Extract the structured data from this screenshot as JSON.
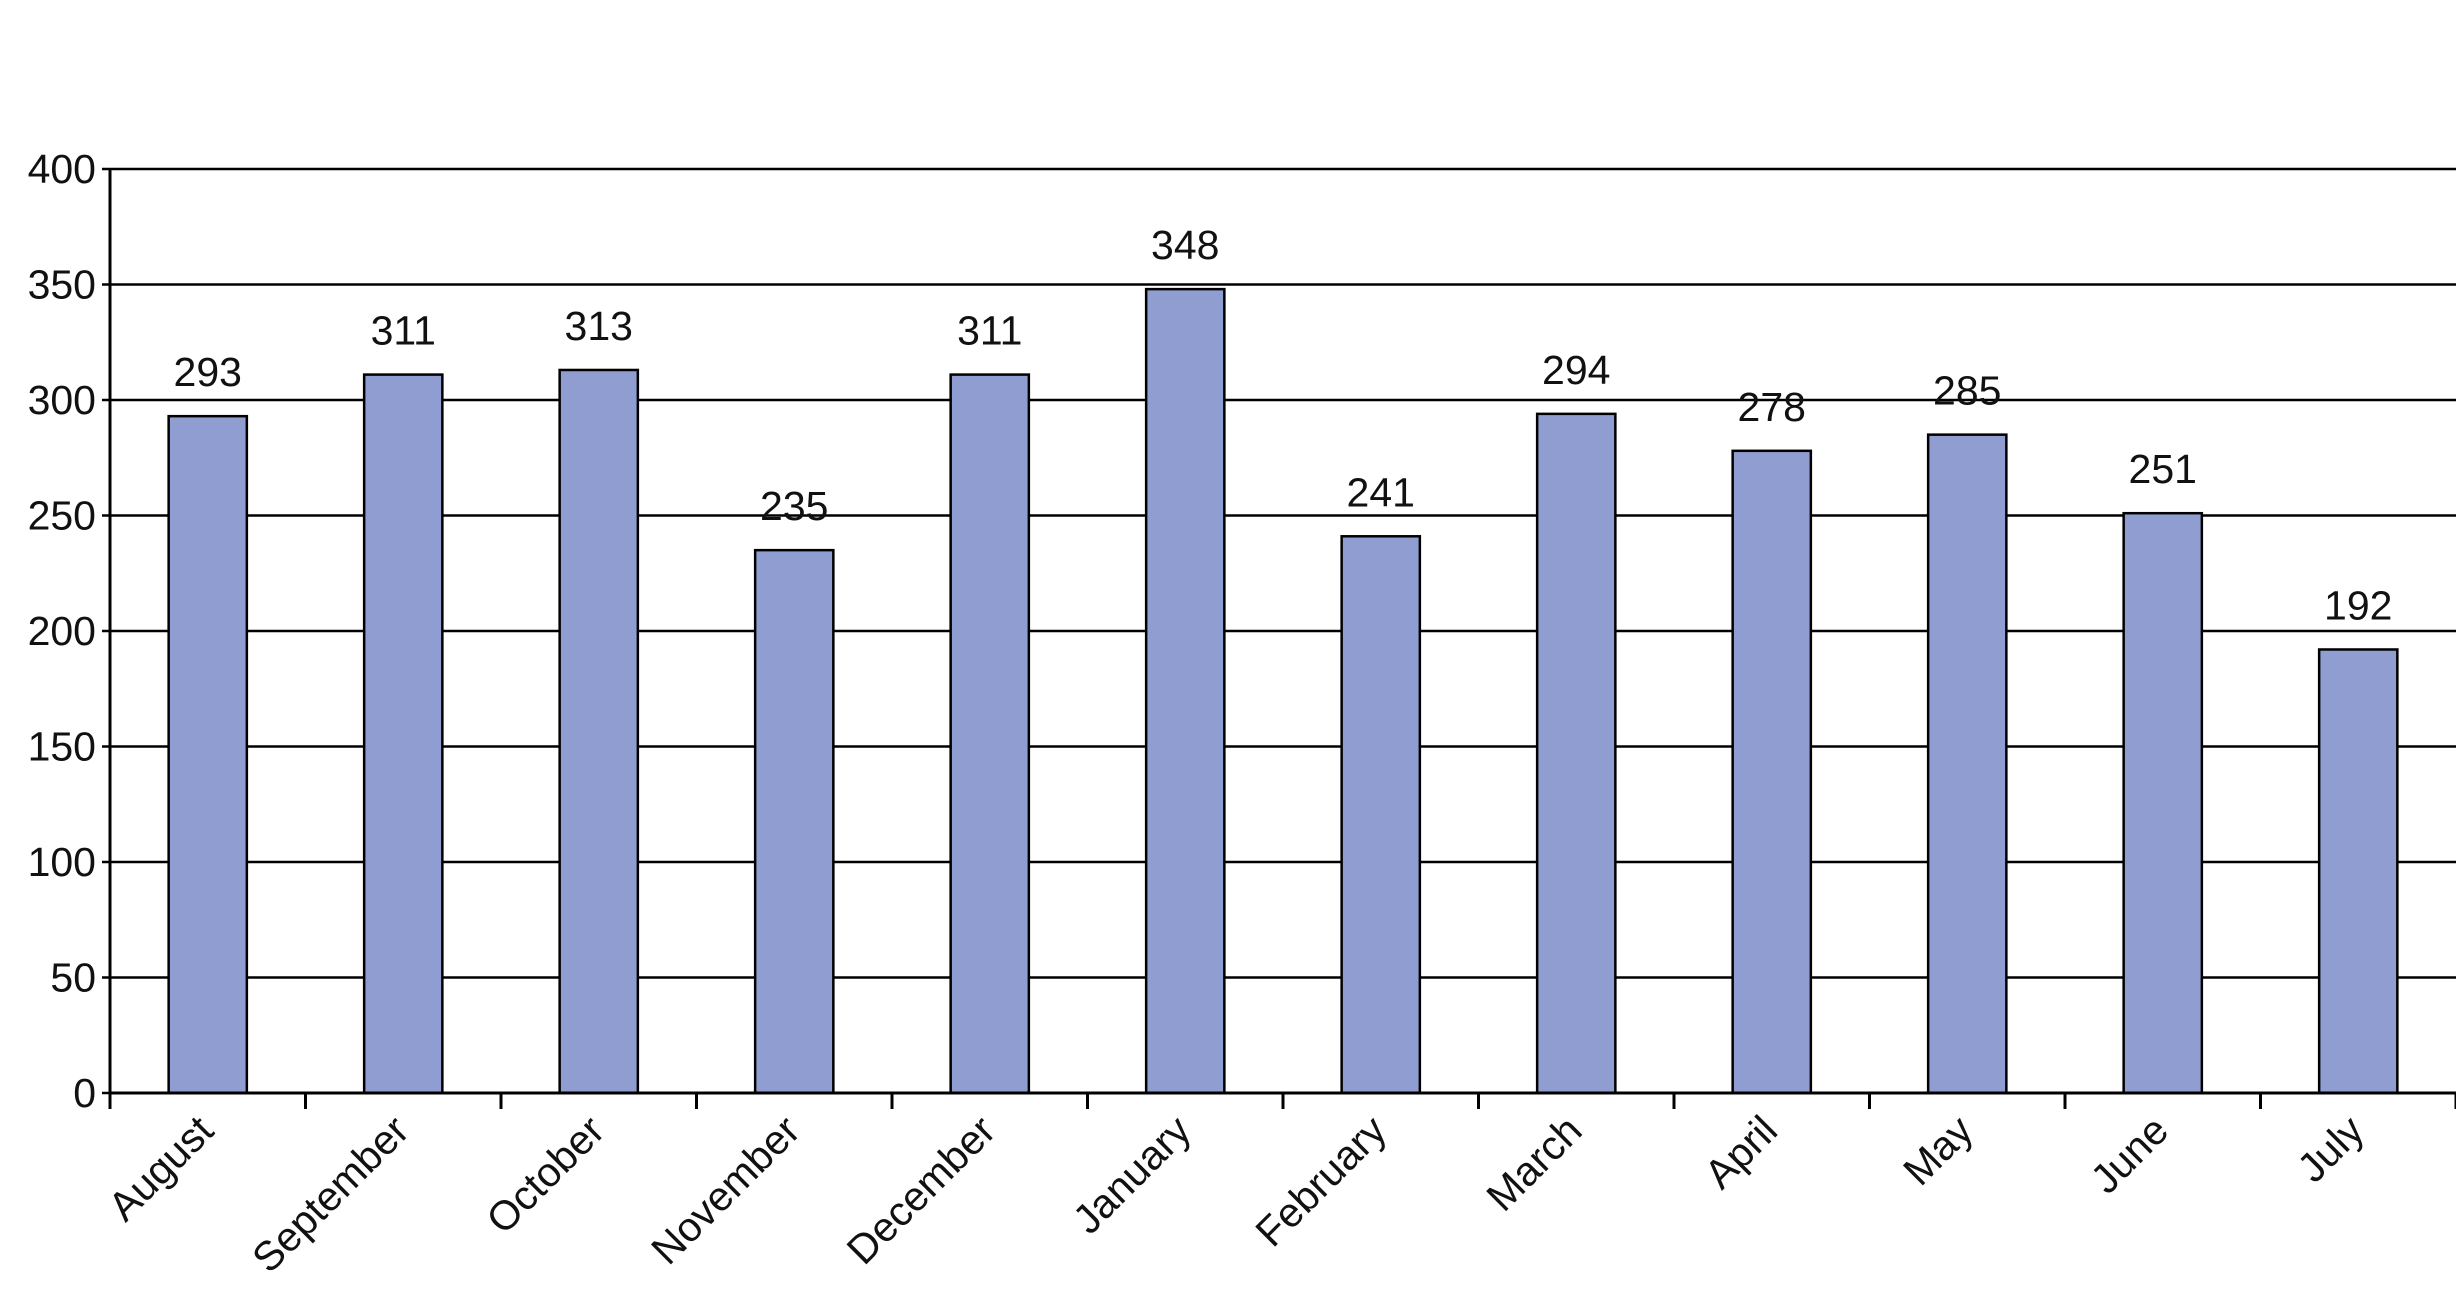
{
  "chart_data": {
    "type": "bar",
    "categories": [
      "August",
      "September",
      "October",
      "November",
      "December",
      "January",
      "February",
      "March",
      "April",
      "May",
      "June",
      "July"
    ],
    "values": [
      293,
      311,
      313,
      235,
      311,
      348,
      241,
      294,
      278,
      285,
      251,
      192
    ],
    "color": "#8f9dd0",
    "ylim": [
      0,
      400
    ],
    "yticks": [
      0,
      50,
      100,
      150,
      200,
      250,
      300,
      350,
      400
    ],
    "grid": true
  }
}
